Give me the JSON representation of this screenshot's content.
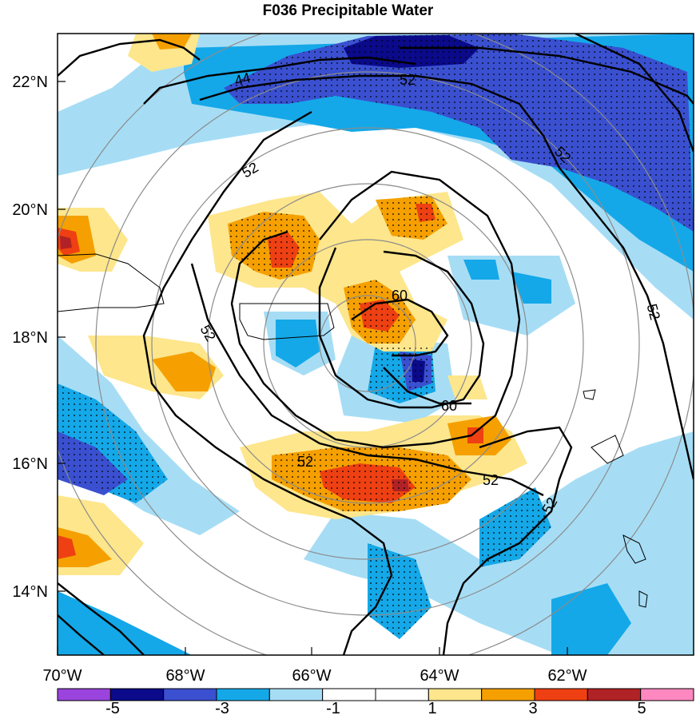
{
  "title": "F036 Precipitable Water",
  "axes": {
    "lon_labels": [
      "70°W",
      "68°W",
      "66°W",
      "64°W",
      "62°W"
    ],
    "lat_labels": [
      "22°N",
      "20°N",
      "18°N",
      "16°N",
      "14°N"
    ]
  },
  "colorbar": {
    "labels": [
      "-5",
      "-3",
      "-1",
      "1",
      "3",
      "5"
    ],
    "colors": [
      "#9a44dd",
      "#0a0a8a",
      "#3a50d0",
      "#14a8e8",
      "#a6ddf5",
      "#ffffff",
      "#ffffff",
      "#fde68c",
      "#f5a000",
      "#ee4012",
      "#b02226",
      "#ff88c0"
    ]
  },
  "contour_labels": [
    "44",
    "52",
    "52",
    "52",
    "52",
    "52",
    "52",
    "52",
    "52",
    "60",
    "60"
  ],
  "colors": {
    "land_outline": "#000000",
    "range_rings": "#8c8c8c",
    "contour": "#000000"
  }
}
